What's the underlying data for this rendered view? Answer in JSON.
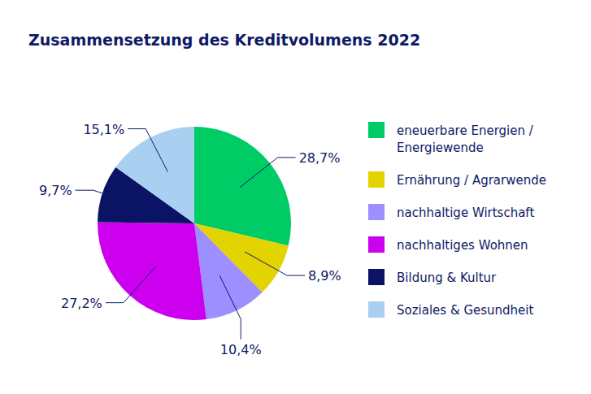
{
  "chart_data": {
    "type": "pie",
    "title": "Zusammensetzung des Kreditvolumens 2022",
    "categories": [
      "eneuerbare Energien / Energiewende",
      "Ernährung / Agrarwende",
      "nachhaltige Wirtschaft",
      "nachhaltiges Wohnen",
      "Bildung & Kultur",
      "Soziales & Gesundheit"
    ],
    "values": [
      28.7,
      8.9,
      10.4,
      27.2,
      9.7,
      15.1
    ],
    "value_labels": [
      "28,7%",
      "8,9%",
      "10,4%",
      "27,2%",
      "9,7%",
      "15,1%"
    ],
    "colors": [
      "#00cc66",
      "#e3d300",
      "#9d8fff",
      "#cc00ee",
      "#0b1464",
      "#a9d0f1"
    ],
    "data_labels": true,
    "legend": "right"
  }
}
